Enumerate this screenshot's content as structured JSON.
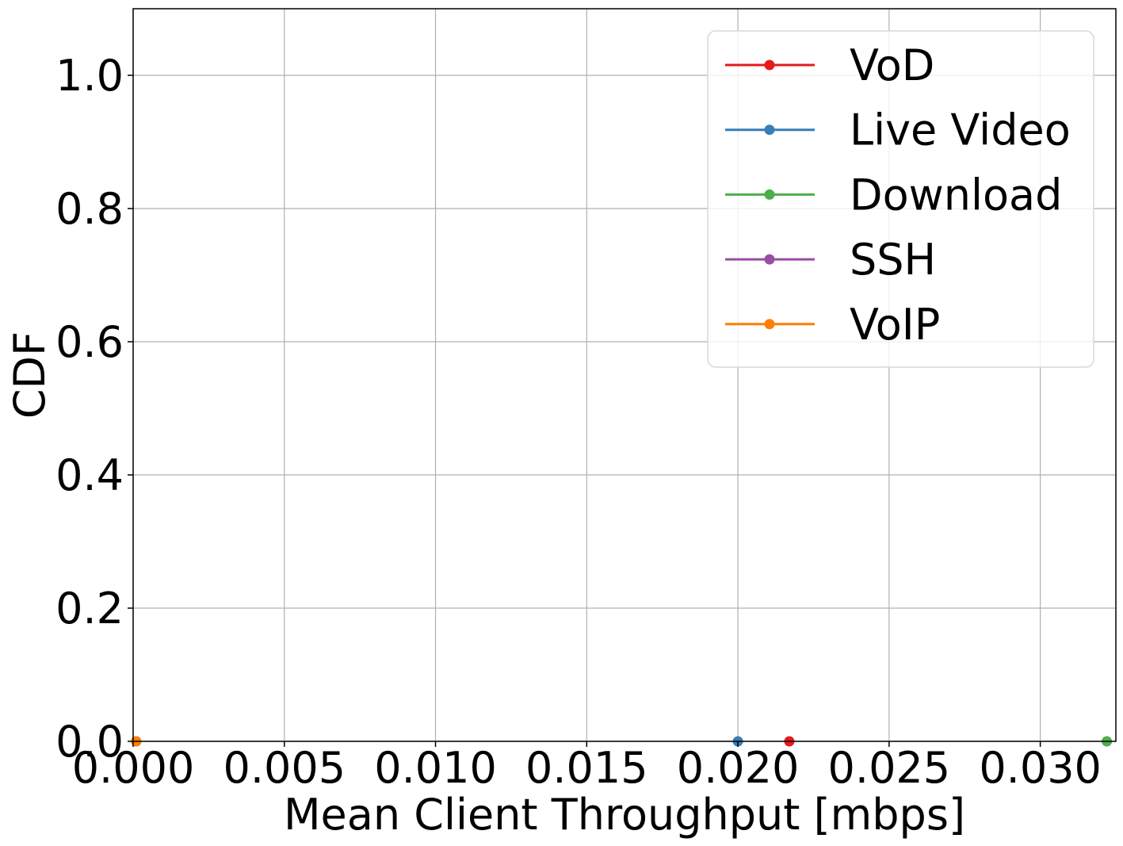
{
  "chart_data": {
    "type": "line",
    "title": "",
    "xlabel": "Mean Client Throughput [mbps]",
    "ylabel": "CDF",
    "xlim": [
      0.0,
      0.0325
    ],
    "ylim": [
      0.0,
      1.1
    ],
    "xticks": [
      0.0,
      0.005,
      0.01,
      0.015,
      0.02,
      0.025,
      0.03
    ],
    "xtick_labels": [
      "0.000",
      "0.005",
      "0.010",
      "0.015",
      "0.020",
      "0.025",
      "0.030"
    ],
    "yticks": [
      0.0,
      0.2,
      0.4,
      0.6,
      0.8,
      1.0
    ],
    "ytick_labels": [
      "0.0",
      "0.2",
      "0.4",
      "0.6",
      "0.8",
      "1.0"
    ],
    "grid": true,
    "legend_position": "top-right",
    "series": [
      {
        "name": "VoD",
        "color": "#e41a1c",
        "x": [
          0.0217
        ],
        "y": [
          0.0
        ]
      },
      {
        "name": "Live Video",
        "color": "#377eb8",
        "x": [
          0.02
        ],
        "y": [
          0.0
        ]
      },
      {
        "name": "Download",
        "color": "#4daf4a",
        "x": [
          0.0322
        ],
        "y": [
          0.0
        ]
      },
      {
        "name": "SSH",
        "color": "#984ea3",
        "x": [
          0.0001
        ],
        "y": [
          0.0
        ]
      },
      {
        "name": "VoIP",
        "color": "#ff7f00",
        "x": [
          0.0001
        ],
        "y": [
          0.0
        ]
      }
    ]
  }
}
